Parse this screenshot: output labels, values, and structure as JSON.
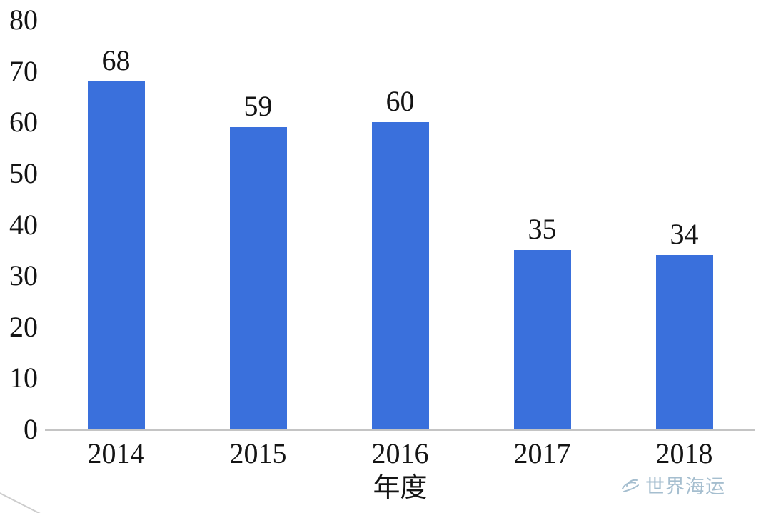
{
  "chart_data": {
    "type": "bar",
    "categories": [
      "2014",
      "2015",
      "2016",
      "2017",
      "2018"
    ],
    "values": [
      68,
      59,
      60,
      35,
      34
    ],
    "title": "",
    "xlabel": "年度",
    "ylabel": "",
    "ylim": [
      0,
      80
    ],
    "yticks": [
      0,
      10,
      20,
      30,
      40,
      50,
      60,
      70,
      80
    ],
    "bar_color": "#3a70dc",
    "grid": false,
    "legend_position": "none"
  },
  "watermark": {
    "text": "世界海运"
  }
}
